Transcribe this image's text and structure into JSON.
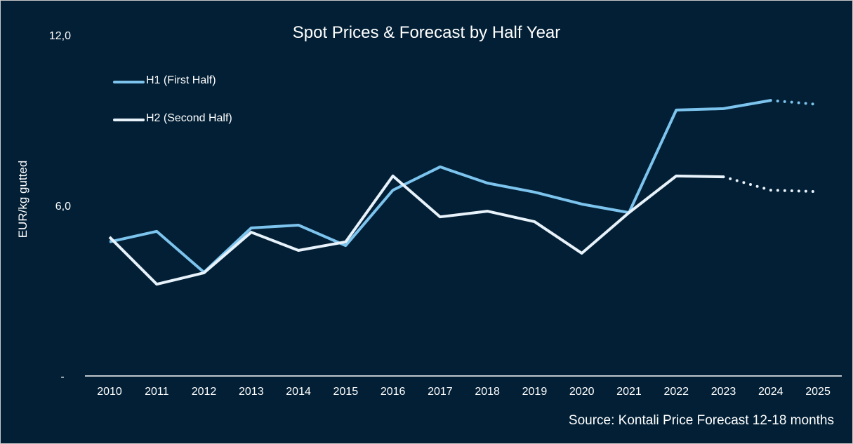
{
  "chart_data": {
    "type": "line",
    "title": "Spot Prices & Forecast by Half Year",
    "ylabel": "EUR/kg gutted",
    "xlabel": "",
    "source": "Source: Kontali  Price Forecast 12-18 months",
    "categories": [
      "2010",
      "2011",
      "2012",
      "2013",
      "2014",
      "2015",
      "2016",
      "2017",
      "2018",
      "2019",
      "2020",
      "2021",
      "2022",
      "2023",
      "2024",
      "2025"
    ],
    "ylim": [
      0,
      12
    ],
    "yticks": [
      {
        "value": 0,
        "label": "-"
      },
      {
        "value": 6,
        "label": "6,0"
      },
      {
        "value": 12,
        "label": "12,0"
      }
    ],
    "grid": false,
    "legend_position": "top-left",
    "series": [
      {
        "name": "H1 (First Half)",
        "color": "#7cc4ee",
        "forecast_from": "2024",
        "values": [
          4.72,
          5.09,
          3.65,
          5.21,
          5.31,
          4.59,
          6.54,
          7.36,
          6.79,
          6.47,
          6.05,
          5.75,
          9.36,
          9.41,
          9.7,
          9.56
        ]
      },
      {
        "name": "H2 (Second Half)",
        "color": "#e8f2fa",
        "forecast_from": "2023",
        "values": [
          4.89,
          3.23,
          3.63,
          5.06,
          4.42,
          4.72,
          7.04,
          5.6,
          5.8,
          5.43,
          4.32,
          5.75,
          7.04,
          7.01,
          6.54,
          6.49
        ]
      }
    ]
  },
  "colors": {
    "background": "#021f35",
    "axis": "#ffffff"
  }
}
